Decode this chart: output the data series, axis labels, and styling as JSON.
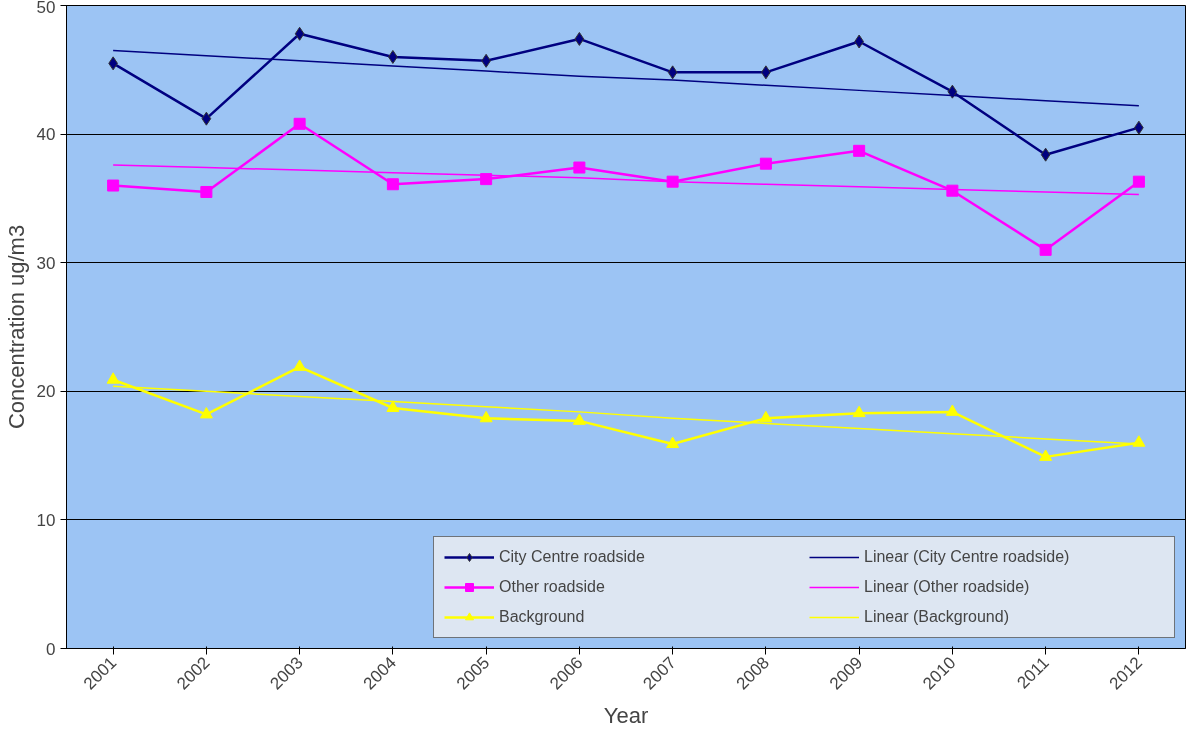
{
  "chart_data": {
    "type": "line",
    "xlabel": "Year",
    "ylabel": "Concentration ug/m3",
    "categories": [
      "2001",
      "2002",
      "2003",
      "2004",
      "2005",
      "2006",
      "2007",
      "2008",
      "2009",
      "2010",
      "2011",
      "2012"
    ],
    "ylim": [
      0,
      50
    ],
    "yticks": [
      0,
      10,
      20,
      30,
      40,
      50
    ],
    "grid": "y",
    "legend": "bottom right",
    "series": [
      {
        "name": "City Centre roadside",
        "color": "#000080",
        "marker": "diamond",
        "values": [
          45.5,
          41.2,
          47.8,
          46.0,
          45.7,
          47.4,
          44.8,
          44.8,
          47.2,
          43.3,
          38.4,
          40.5
        ]
      },
      {
        "name": "Other roadside",
        "color": "#ff00ff",
        "marker": "square",
        "values": [
          36.0,
          35.5,
          40.8,
          36.1,
          36.5,
          37.4,
          36.3,
          37.7,
          38.7,
          35.6,
          31.0,
          36.3
        ]
      },
      {
        "name": "Background",
        "color": "#ffff00",
        "marker": "triangle",
        "values": [
          20.9,
          18.2,
          21.9,
          18.7,
          17.9,
          17.7,
          15.9,
          17.9,
          18.3,
          18.4,
          14.9,
          16.0
        ]
      },
      {
        "name": "Linear (City Centre roadside)",
        "color": "#000080",
        "marker": "none",
        "values": [
          46.5,
          46.1,
          45.7,
          45.3,
          44.9,
          44.5,
          44.2,
          43.8,
          43.4,
          43.0,
          42.6,
          42.2
        ]
      },
      {
        "name": "Linear (Other roadside)",
        "color": "#ff00ff",
        "marker": "none",
        "values": [
          37.6,
          37.4,
          37.2,
          37.0,
          36.8,
          36.6,
          36.3,
          36.1,
          35.9,
          35.7,
          35.5,
          35.3
        ]
      },
      {
        "name": "Linear (Background)",
        "color": "#ffff00",
        "marker": "none",
        "values": [
          20.4,
          20.0,
          19.6,
          19.2,
          18.8,
          18.4,
          17.9,
          17.5,
          17.1,
          16.7,
          16.3,
          15.9
        ]
      }
    ]
  }
}
